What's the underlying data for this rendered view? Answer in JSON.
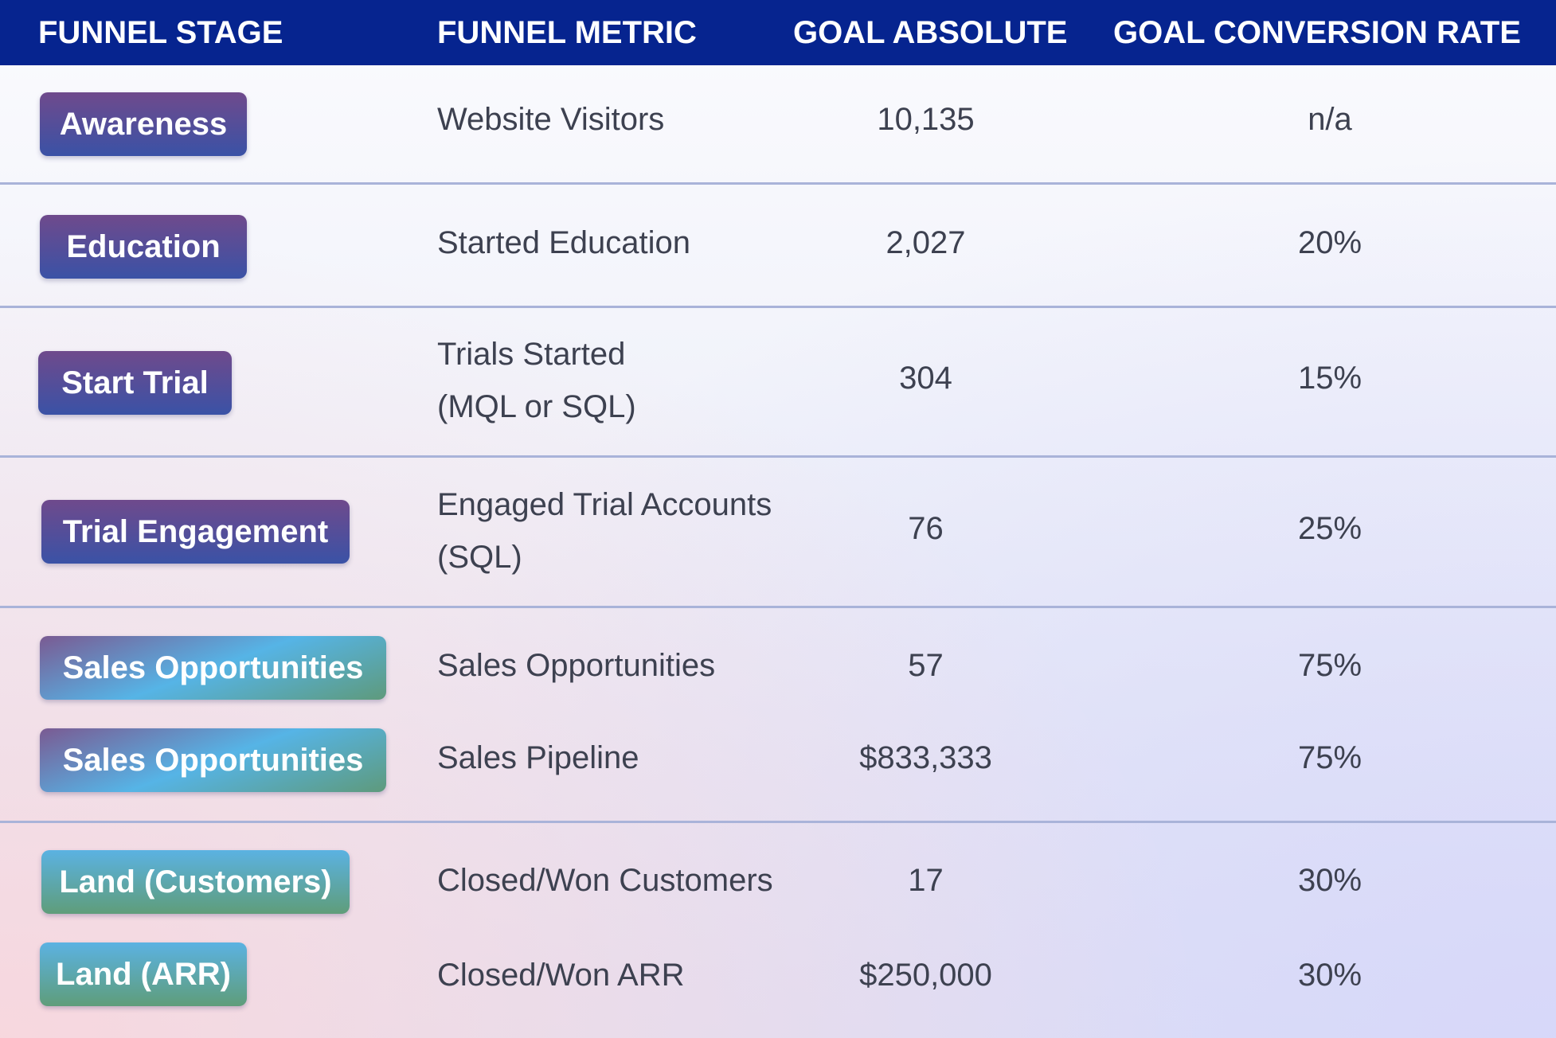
{
  "headers": {
    "stage": "FUNNEL STAGE",
    "metric": "FUNNEL METRIC",
    "absolute": "GOAL ABSOLUTE",
    "rate": "GOAL CONVERSION RATE"
  },
  "rows": [
    {
      "stage": "Awareness",
      "metric": "Website Visitors",
      "absolute": "10,135",
      "rate": "n/a"
    },
    {
      "stage": "Education",
      "metric": "Started Education",
      "absolute": "2,027",
      "rate": "20%"
    },
    {
      "stage": "Start Trial",
      "metric_line1": "Trials Started",
      "metric_line2": "(MQL or SQL)",
      "absolute": "304",
      "rate": "15%"
    },
    {
      "stage": "Trial Engagement",
      "metric_line1": "Engaged Trial Accounts",
      "metric_line2": "(SQL)",
      "absolute": "76",
      "rate": "25%"
    },
    {
      "stage": "Sales Opportunities",
      "metric": "Sales Opportunities",
      "absolute": "57",
      "rate": "75%"
    },
    {
      "stage": "Sales Opportunities",
      "metric": "Sales Pipeline",
      "absolute": "$833,333",
      "rate": "75%"
    },
    {
      "stage": "Land (Customers)",
      "metric": "Closed/Won Customers",
      "absolute": "17",
      "rate": "30%"
    },
    {
      "stage": "Land (ARR)",
      "metric": "Closed/Won ARR",
      "absolute": "$250,000",
      "rate": "30%"
    }
  ],
  "colors": {
    "header_bg": "#06248f",
    "divider": "#a9b3d9",
    "text": "#3d4150",
    "pill_purple_top": "#6f4a8c",
    "pill_purple_bottom": "#3a52a6",
    "pill_blue": "#56b4e6",
    "pill_green": "#5f9d7a"
  }
}
